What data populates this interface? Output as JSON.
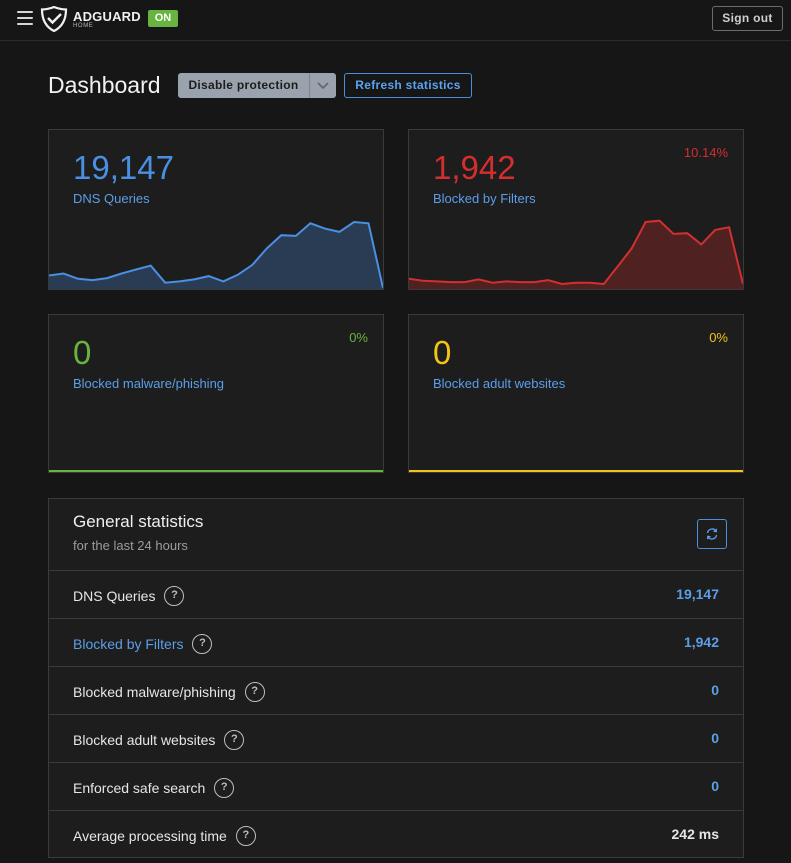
{
  "header": {
    "brand": "ADGUARD",
    "brand_sub": "HOME",
    "status_badge": "ON",
    "sign_out_label": "Sign out"
  },
  "page": {
    "title": "Dashboard",
    "disable_protection_label": "Disable protection",
    "refresh_statistics_label": "Refresh statistics"
  },
  "cards": [
    {
      "value": "19,147",
      "label": "DNS Queries",
      "percent": "",
      "color": "#4a90e2",
      "sparkline": [
        0.19,
        0.22,
        0.14,
        0.12,
        0.15,
        0.22,
        0.28,
        0.34,
        0.08,
        0.1,
        0.13,
        0.18,
        0.1,
        0.2,
        0.35,
        0.6,
        0.8,
        0.79,
        0.98,
        0.9,
        0.85,
        1.0,
        0.98,
        0.0
      ]
    },
    {
      "value": "1,942",
      "label": "Blocked by Filters",
      "percent": "10.14%",
      "color": "#d32f2f",
      "sparkline": [
        0.14,
        0.11,
        0.1,
        0.09,
        0.09,
        0.13,
        0.08,
        0.1,
        0.09,
        0.09,
        0.12,
        0.06,
        0.08,
        0.08,
        0.06,
        0.33,
        0.6,
        1.0,
        1.02,
        0.82,
        0.83,
        0.66,
        0.88,
        0.92,
        0.06
      ]
    },
    {
      "value": "0",
      "label": "Blocked malware/phishing",
      "percent": "0%",
      "color": "#67b43f"
    },
    {
      "value": "0",
      "label": "Blocked adult websites",
      "percent": "0%",
      "color": "#f0c419"
    }
  ],
  "general_stats": {
    "title": "General statistics",
    "subtitle": "for the last 24 hours",
    "rows": [
      {
        "name": "DNS Queries",
        "value": "19,147"
      },
      {
        "name": "Blocked by Filters",
        "value": "1,942"
      },
      {
        "name": "Blocked malware/phishing",
        "value": "0"
      },
      {
        "name": "Blocked adult websites",
        "value": "0"
      },
      {
        "name": "Enforced safe search",
        "value": "0"
      },
      {
        "name": "Average processing time",
        "value": "242 ms"
      }
    ],
    "help_glyph": "?"
  },
  "colors": {
    "accent": "#4a90e2",
    "on_badge": "#67b43f",
    "danger": "#d32f2f",
    "warning": "#f0c419"
  },
  "icons": {
    "menu": "hamburger-icon",
    "logo": "adguard-shield-icon",
    "dropdown": "chevron-down-icon",
    "refresh": "refresh-icon",
    "help": "question-circle-icon"
  }
}
